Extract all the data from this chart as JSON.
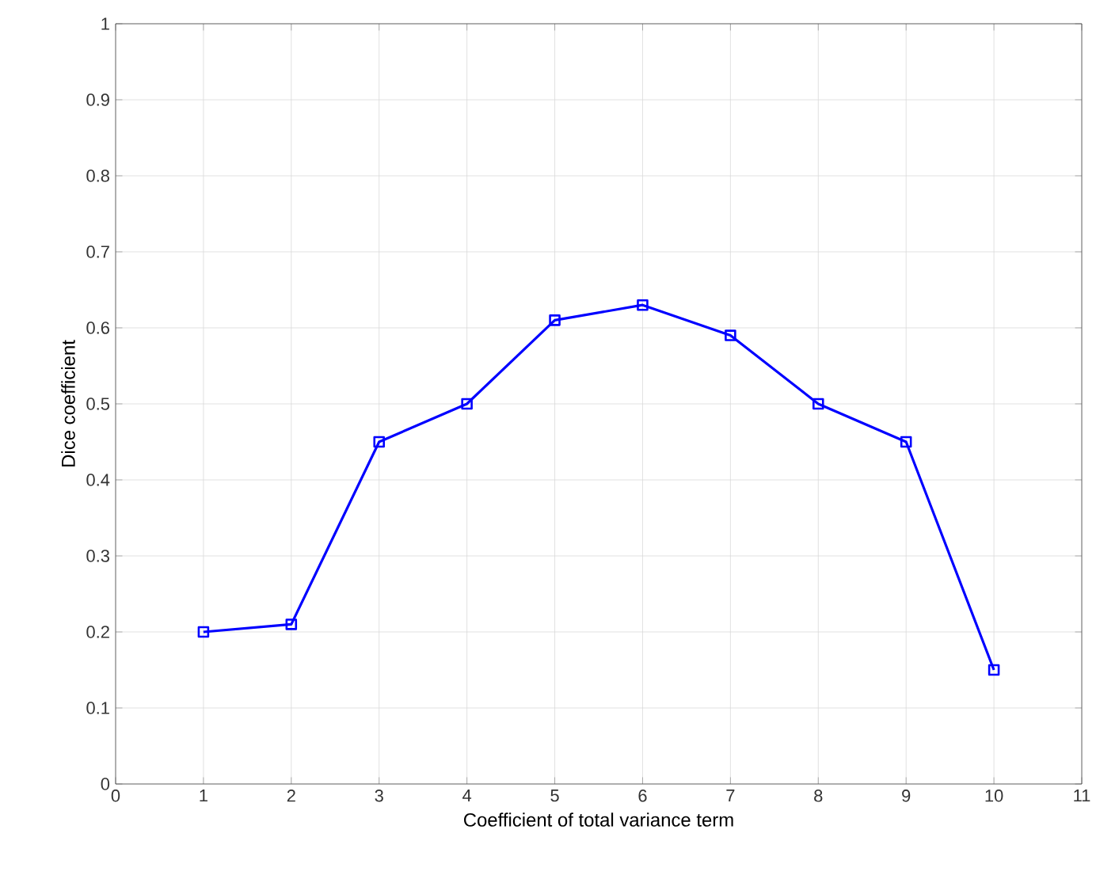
{
  "chart_data": {
    "type": "line",
    "xlabel": "Coefficient of total variance term",
    "ylabel": "Dice coefficient",
    "x": [
      1,
      2,
      3,
      4,
      5,
      6,
      7,
      8,
      9,
      10
    ],
    "series": [
      {
        "color": "#0000ff",
        "values": [
          0.2,
          0.21,
          0.45,
          0.5,
          0.61,
          0.63,
          0.59,
          0.5,
          0.45,
          0.15
        ]
      }
    ],
    "xlim": [
      0,
      11
    ],
    "ylim": [
      0,
      1
    ],
    "xticks": [
      0,
      1,
      2,
      3,
      4,
      5,
      6,
      7,
      8,
      9,
      10,
      11
    ],
    "yticks": [
      0,
      0.1,
      0.2,
      0.3,
      0.4,
      0.5,
      0.6,
      0.7,
      0.8,
      0.9,
      1
    ],
    "grid": true,
    "marker": "square",
    "line_style": "solid"
  }
}
